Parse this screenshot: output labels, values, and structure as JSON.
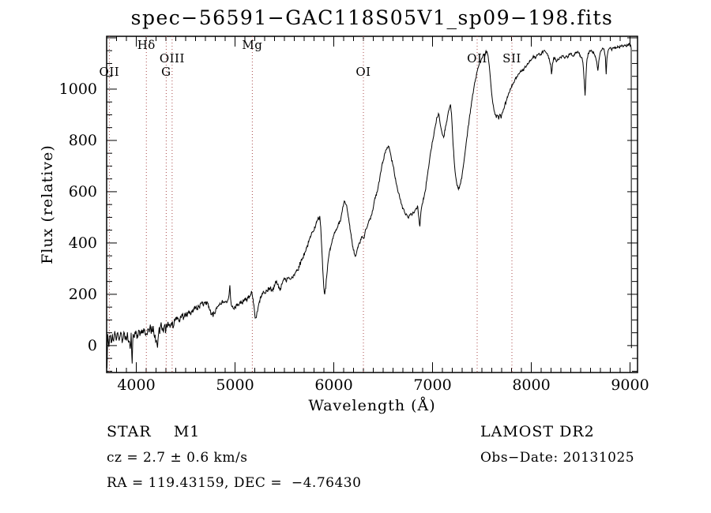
{
  "title": "spec−56591−GAC118S05V1_sp09−198.fits",
  "annotations": {
    "class_label": "STAR    M1",
    "survey": "LAMOST DR2",
    "cz": "cz = 2.7 ± 0.6 km/s",
    "obs_date": "Obs−Date: 20131025",
    "radec": "RA = 119.43159, DEC =  −4.76430"
  },
  "chart_data": {
    "type": "line",
    "title": "spec−56591−GAC118S05V1_sp09−198.fits",
    "xlabel": "Wavelength (Å)",
    "ylabel": "Flux (relative)",
    "xlim": [
      3700,
      9076
    ],
    "ylim": [
      -105,
      1206
    ],
    "grid": false,
    "line_color": "#000000",
    "feature_line_color": "#a84848",
    "x_ticks": {
      "major_step": 1000,
      "minor_step": 100,
      "labels": [
        4000,
        5000,
        6000,
        7000,
        8000,
        9000
      ]
    },
    "y_ticks": {
      "major_step": 200,
      "minor_step": 50,
      "labels": [
        0,
        200,
        400,
        600,
        800,
        1000
      ]
    },
    "spectral_lines": [
      {
        "label": "OII",
        "wavelength": 3727,
        "row": 3
      },
      {
        "label": "Hδ",
        "wavelength": 4102,
        "row": 1
      },
      {
        "label": "OIII",
        "wavelength": 4363,
        "row": 2
      },
      {
        "label": "G",
        "wavelength": 4303,
        "row": 3
      },
      {
        "label": "Mg",
        "wavelength": 5175,
        "row": 1
      },
      {
        "label": "OI",
        "wavelength": 6300,
        "row": 3
      },
      {
        "label": "OII",
        "wavelength": 7452,
        "row": 2
      },
      {
        "label": "SII",
        "wavelength": 7804,
        "row": 2
      }
    ],
    "noise": {
      "step": 6,
      "segments": [
        [
          3700,
          4400,
          20
        ],
        [
          4400,
          5650,
          12
        ],
        [
          5650,
          6600,
          9
        ],
        [
          6600,
          7600,
          7
        ],
        [
          7600,
          9014,
          6
        ]
      ]
    },
    "points": [
      [
        3700,
        5
      ],
      [
        3704,
        -88
      ],
      [
        3710,
        45
      ],
      [
        3722,
        -5
      ],
      [
        3732,
        38
      ],
      [
        3745,
        12
      ],
      [
        3758,
        42
      ],
      [
        3770,
        18
      ],
      [
        3785,
        48
      ],
      [
        3800,
        25
      ],
      [
        3815,
        45
      ],
      [
        3830,
        28
      ],
      [
        3845,
        50
      ],
      [
        3862,
        22
      ],
      [
        3880,
        48
      ],
      [
        3895,
        30
      ],
      [
        3910,
        52
      ],
      [
        3925,
        18
      ],
      [
        3938,
        -12
      ],
      [
        3948,
        50
      ],
      [
        3958,
        -70
      ],
      [
        3968,
        45
      ],
      [
        3980,
        30
      ],
      [
        3995,
        58
      ],
      [
        4010,
        42
      ],
      [
        4025,
        60
      ],
      [
        4040,
        45
      ],
      [
        4055,
        62
      ],
      [
        4070,
        48
      ],
      [
        4085,
        60
      ],
      [
        4100,
        46
      ],
      [
        4115,
        64
      ],
      [
        4130,
        52
      ],
      [
        4145,
        68
      ],
      [
        4160,
        55
      ],
      [
        4175,
        60
      ],
      [
        4190,
        42
      ],
      [
        4205,
        20
      ],
      [
        4215,
        -8
      ],
      [
        4226,
        48
      ],
      [
        4240,
        65
      ],
      [
        4255,
        75
      ],
      [
        4270,
        58
      ],
      [
        4285,
        78
      ],
      [
        4300,
        60
      ],
      [
        4315,
        72
      ],
      [
        4330,
        82
      ],
      [
        4345,
        75
      ],
      [
        4360,
        90
      ],
      [
        4375,
        72
      ],
      [
        4390,
        95
      ],
      [
        4405,
        100
      ],
      [
        4420,
        108
      ],
      [
        4435,
        98
      ],
      [
        4450,
        112
      ],
      [
        4465,
        118
      ],
      [
        4480,
        108
      ],
      [
        4495,
        122
      ],
      [
        4510,
        118
      ],
      [
        4525,
        128
      ],
      [
        4540,
        132
      ],
      [
        4555,
        126
      ],
      [
        4570,
        138
      ],
      [
        4585,
        142
      ],
      [
        4600,
        148
      ],
      [
        4615,
        144
      ],
      [
        4630,
        152
      ],
      [
        4645,
        158
      ],
      [
        4660,
        164
      ],
      [
        4675,
        158
      ],
      [
        4690,
        168
      ],
      [
        4705,
        172
      ],
      [
        4720,
        166
      ],
      [
        4735,
        152
      ],
      [
        4750,
        138
      ],
      [
        4765,
        124
      ],
      [
        4778,
        112
      ],
      [
        4790,
        126
      ],
      [
        4805,
        142
      ],
      [
        4820,
        152
      ],
      [
        4835,
        158
      ],
      [
        4850,
        162
      ],
      [
        4865,
        166
      ],
      [
        4880,
        170
      ],
      [
        4895,
        168
      ],
      [
        4910,
        172
      ],
      [
        4925,
        176
      ],
      [
        4940,
        200
      ],
      [
        4948,
        235
      ],
      [
        4956,
        180
      ],
      [
        4968,
        152
      ],
      [
        4980,
        146
      ],
      [
        4995,
        152
      ],
      [
        5010,
        158
      ],
      [
        5025,
        162
      ],
      [
        5040,
        158
      ],
      [
        5055,
        164
      ],
      [
        5070,
        168
      ],
      [
        5085,
        172
      ],
      [
        5100,
        176
      ],
      [
        5115,
        180
      ],
      [
        5130,
        186
      ],
      [
        5145,
        192
      ],
      [
        5160,
        198
      ],
      [
        5172,
        204
      ],
      [
        5185,
        168
      ],
      [
        5198,
        128
      ],
      [
        5210,
        108
      ],
      [
        5222,
        132
      ],
      [
        5235,
        152
      ],
      [
        5250,
        170
      ],
      [
        5265,
        188
      ],
      [
        5280,
        200
      ],
      [
        5295,
        208
      ],
      [
        5310,
        204
      ],
      [
        5325,
        212
      ],
      [
        5340,
        218
      ],
      [
        5355,
        224
      ],
      [
        5370,
        218
      ],
      [
        5385,
        226
      ],
      [
        5400,
        232
      ],
      [
        5415,
        244
      ],
      [
        5430,
        238
      ],
      [
        5445,
        230
      ],
      [
        5458,
        222
      ],
      [
        5470,
        240
      ],
      [
        5485,
        252
      ],
      [
        5500,
        258
      ],
      [
        5515,
        252
      ],
      [
        5530,
        262
      ],
      [
        5545,
        266
      ],
      [
        5560,
        258
      ],
      [
        5575,
        268
      ],
      [
        5590,
        274
      ],
      [
        5605,
        280
      ],
      [
        5625,
        292
      ],
      [
        5645,
        308
      ],
      [
        5665,
        324
      ],
      [
        5685,
        342
      ],
      [
        5705,
        362
      ],
      [
        5725,
        382
      ],
      [
        5745,
        402
      ],
      [
        5765,
        424
      ],
      [
        5785,
        444
      ],
      [
        5805,
        462
      ],
      [
        5825,
        480
      ],
      [
        5845,
        495
      ],
      [
        5858,
        505
      ],
      [
        5868,
        462
      ],
      [
        5878,
        380
      ],
      [
        5888,
        300
      ],
      [
        5898,
        230
      ],
      [
        5908,
        200
      ],
      [
        5918,
        222
      ],
      [
        5928,
        268
      ],
      [
        5938,
        315
      ],
      [
        5950,
        350
      ],
      [
        5965,
        375
      ],
      [
        5980,
        400
      ],
      [
        5995,
        425
      ],
      [
        6010,
        440
      ],
      [
        6025,
        450
      ],
      [
        6040,
        462
      ],
      [
        6055,
        474
      ],
      [
        6070,
        492
      ],
      [
        6085,
        522
      ],
      [
        6100,
        552
      ],
      [
        6112,
        562
      ],
      [
        6124,
        550
      ],
      [
        6136,
        530
      ],
      [
        6150,
        498
      ],
      [
        6164,
        455
      ],
      [
        6178,
        420
      ],
      [
        6192,
        388
      ],
      [
        6206,
        360
      ],
      [
        6218,
        348
      ],
      [
        6230,
        362
      ],
      [
        6245,
        382
      ],
      [
        6260,
        400
      ],
      [
        6275,
        412
      ],
      [
        6290,
        425
      ],
      [
        6302,
        418
      ],
      [
        6315,
        438
      ],
      [
        6330,
        455
      ],
      [
        6345,
        472
      ],
      [
        6360,
        488
      ],
      [
        6375,
        505
      ],
      [
        6390,
        525
      ],
      [
        6405,
        550
      ],
      [
        6420,
        575
      ],
      [
        6435,
        598
      ],
      [
        6450,
        622
      ],
      [
        6465,
        650
      ],
      [
        6480,
        682
      ],
      [
        6495,
        712
      ],
      [
        6510,
        740
      ],
      [
        6525,
        760
      ],
      [
        6540,
        772
      ],
      [
        6552,
        778
      ],
      [
        6565,
        765
      ],
      [
        6580,
        738
      ],
      [
        6595,
        710
      ],
      [
        6610,
        682
      ],
      [
        6625,
        652
      ],
      [
        6640,
        622
      ],
      [
        6655,
        595
      ],
      [
        6670,
        572
      ],
      [
        6685,
        552
      ],
      [
        6700,
        536
      ],
      [
        6715,
        522
      ],
      [
        6730,
        512
      ],
      [
        6745,
        506
      ],
      [
        6760,
        502
      ],
      [
        6775,
        512
      ],
      [
        6790,
        508
      ],
      [
        6805,
        518
      ],
      [
        6820,
        526
      ],
      [
        6835,
        534
      ],
      [
        6850,
        542
      ],
      [
        6862,
        495
      ],
      [
        6872,
        465
      ],
      [
        6882,
        520
      ],
      [
        6895,
        552
      ],
      [
        6910,
        572
      ],
      [
        6925,
        600
      ],
      [
        6940,
        640
      ],
      [
        6955,
        685
      ],
      [
        6970,
        725
      ],
      [
        6985,
        762
      ],
      [
        7000,
        795
      ],
      [
        7015,
        828
      ],
      [
        7030,
        860
      ],
      [
        7045,
        890
      ],
      [
        7060,
        905
      ],
      [
        7072,
        880
      ],
      [
        7085,
        850
      ],
      [
        7098,
        825
      ],
      [
        7112,
        812
      ],
      [
        7126,
        838
      ],
      [
        7140,
        868
      ],
      [
        7155,
        900
      ],
      [
        7170,
        925
      ],
      [
        7182,
        940
      ],
      [
        7192,
        905
      ],
      [
        7202,
        830
      ],
      [
        7215,
        745
      ],
      [
        7228,
        680
      ],
      [
        7242,
        640
      ],
      [
        7256,
        618
      ],
      [
        7270,
        612
      ],
      [
        7284,
        632
      ],
      [
        7298,
        662
      ],
      [
        7312,
        700
      ],
      [
        7326,
        742
      ],
      [
        7340,
        788
      ],
      [
        7355,
        835
      ],
      [
        7370,
        878
      ],
      [
        7385,
        920
      ],
      [
        7400,
        958
      ],
      [
        7415,
        995
      ],
      [
        7430,
        1028
      ],
      [
        7445,
        1058
      ],
      [
        7460,
        1082
      ],
      [
        7475,
        1100
      ],
      [
        7490,
        1112
      ],
      [
        7505,
        1122
      ],
      [
        7520,
        1132
      ],
      [
        7535,
        1140
      ],
      [
        7550,
        1148
      ],
      [
        7562,
        1130
      ],
      [
        7574,
        1092
      ],
      [
        7586,
        1040
      ],
      [
        7598,
        985
      ],
      [
        7610,
        945
      ],
      [
        7622,
        918
      ],
      [
        7634,
        900
      ],
      [
        7646,
        888
      ],
      [
        7658,
        898
      ],
      [
        7670,
        882
      ],
      [
        7682,
        902
      ],
      [
        7694,
        886
      ],
      [
        7706,
        908
      ],
      [
        7718,
        922
      ],
      [
        7730,
        935
      ],
      [
        7745,
        952
      ],
      [
        7760,
        968
      ],
      [
        7775,
        985
      ],
      [
        7790,
        1000
      ],
      [
        7805,
        1012
      ],
      [
        7820,
        1025
      ],
      [
        7835,
        1038
      ],
      [
        7850,
        1048
      ],
      [
        7865,
        1056
      ],
      [
        7880,
        1062
      ],
      [
        7895,
        1068
      ],
      [
        7910,
        1072
      ],
      [
        7925,
        1078
      ],
      [
        7940,
        1086
      ],
      [
        7955,
        1092
      ],
      [
        7970,
        1100
      ],
      [
        7985,
        1108
      ],
      [
        8000,
        1115
      ],
      [
        8015,
        1122
      ],
      [
        8030,
        1128
      ],
      [
        8045,
        1122
      ],
      [
        8060,
        1132
      ],
      [
        8075,
        1138
      ],
      [
        8090,
        1132
      ],
      [
        8105,
        1140
      ],
      [
        8120,
        1146
      ],
      [
        8135,
        1150
      ],
      [
        8150,
        1142
      ],
      [
        8165,
        1132
      ],
      [
        8180,
        1122
      ],
      [
        8195,
        1098
      ],
      [
        8205,
        1058
      ],
      [
        8215,
        1100
      ],
      [
        8228,
        1125
      ],
      [
        8242,
        1118
      ],
      [
        8256,
        1110
      ],
      [
        8270,
        1114
      ],
      [
        8284,
        1120
      ],
      [
        8298,
        1124
      ],
      [
        8312,
        1130
      ],
      [
        8326,
        1126
      ],
      [
        8340,
        1120
      ],
      [
        8354,
        1130
      ],
      [
        8368,
        1126
      ],
      [
        8382,
        1134
      ],
      [
        8396,
        1138
      ],
      [
        8410,
        1132
      ],
      [
        8424,
        1128
      ],
      [
        8438,
        1134
      ],
      [
        8452,
        1140
      ],
      [
        8466,
        1144
      ],
      [
        8480,
        1140
      ],
      [
        8494,
        1132
      ],
      [
        8508,
        1124
      ],
      [
        8522,
        1105
      ],
      [
        8535,
        1040
      ],
      [
        8545,
        975
      ],
      [
        8555,
        1060
      ],
      [
        8565,
        1118
      ],
      [
        8578,
        1138
      ],
      [
        8592,
        1148
      ],
      [
        8606,
        1152
      ],
      [
        8620,
        1146
      ],
      [
        8634,
        1138
      ],
      [
        8648,
        1128
      ],
      [
        8662,
        1108
      ],
      [
        8674,
        1072
      ],
      [
        8684,
        1110
      ],
      [
        8696,
        1138
      ],
      [
        8710,
        1150
      ],
      [
        8724,
        1158
      ],
      [
        8738,
        1152
      ],
      [
        8750,
        1125
      ],
      [
        8758,
        1058
      ],
      [
        8766,
        1120
      ],
      [
        8778,
        1150
      ],
      [
        8790,
        1158
      ],
      [
        8804,
        1162
      ],
      [
        8818,
        1156
      ],
      [
        8832,
        1162
      ],
      [
        8846,
        1166
      ],
      [
        8860,
        1160
      ],
      [
        8874,
        1168
      ],
      [
        8888,
        1162
      ],
      [
        8902,
        1168
      ],
      [
        8916,
        1172
      ],
      [
        8930,
        1166
      ],
      [
        8944,
        1172
      ],
      [
        8958,
        1168
      ],
      [
        8972,
        1174
      ],
      [
        8986,
        1170
      ],
      [
        9000,
        1176
      ],
      [
        9008,
        1170
      ],
      [
        9012,
        1158
      ],
      [
        9014,
        -10
      ]
    ]
  }
}
